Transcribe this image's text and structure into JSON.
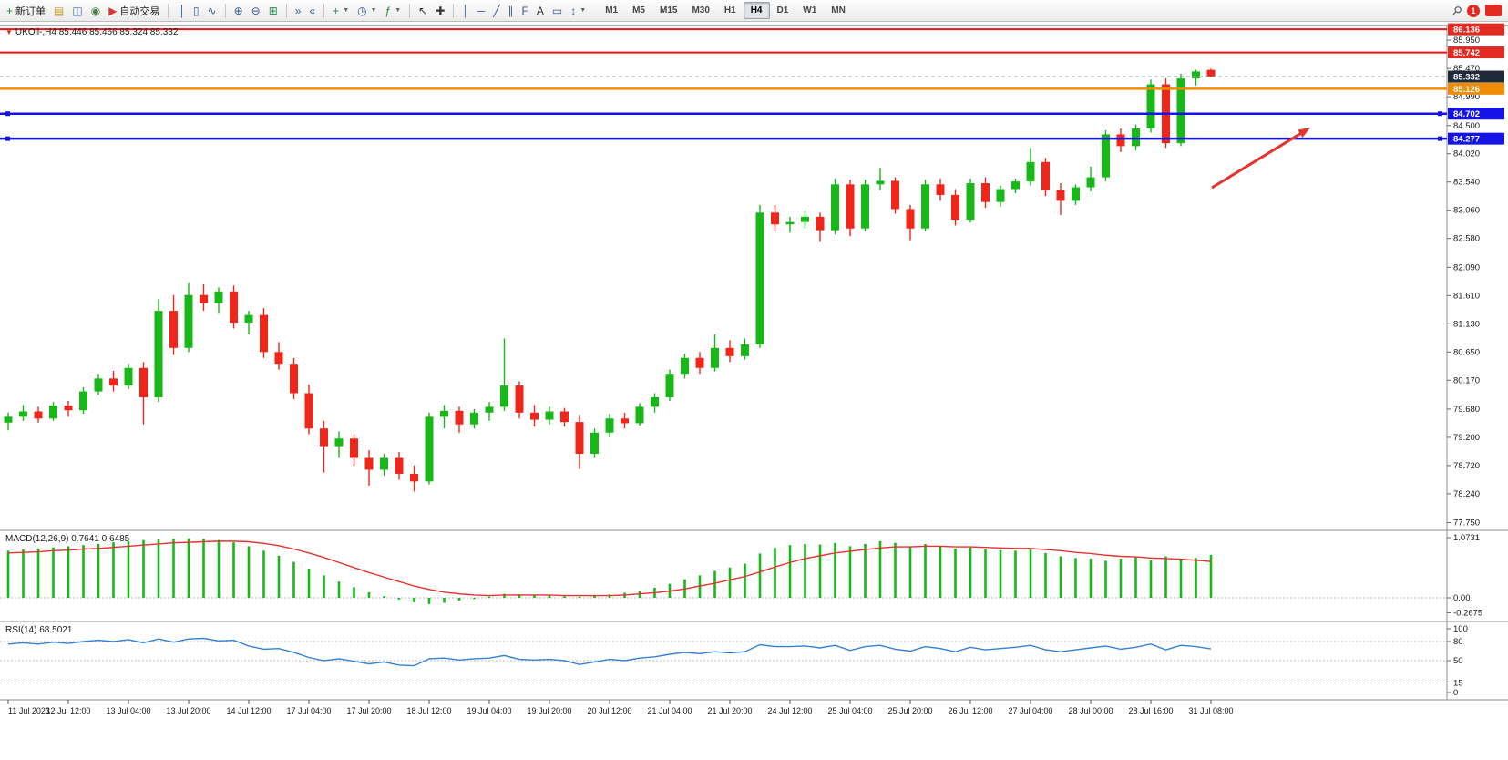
{
  "toolbar": {
    "items": [
      {
        "type": "button",
        "name": "new-order-button",
        "glyph": "+",
        "glyph_color": "#1f8a3b",
        "label": "新订单",
        "dropdown": false
      },
      {
        "type": "button",
        "name": "market-watch-button",
        "glyph": "▤",
        "glyph_color": "#c49a2a"
      },
      {
        "type": "button",
        "name": "data-window-button",
        "glyph": "◫",
        "glyph_color": "#3c6fb0"
      },
      {
        "type": "button",
        "name": "navigator-button",
        "glyph": "◉",
        "glyph_color": "#4a7f46"
      },
      {
        "type": "button",
        "name": "algo-trading-button",
        "glyph": "▶",
        "glyph_color": "#d23b2e",
        "label": "自动交易"
      },
      {
        "type": "separator"
      },
      {
        "type": "button",
        "name": "bars-chart-type-button",
        "glyph": "║",
        "glyph_color": "#3a5a8c"
      },
      {
        "type": "button",
        "name": "candlestick-chart-type-button",
        "glyph": "▯",
        "glyph_color": "#3a5a8c"
      },
      {
        "type": "button",
        "name": "line-chart-type-button",
        "glyph": "∿",
        "glyph_color": "#3a5a8c"
      },
      {
        "type": "separator"
      },
      {
        "type": "button",
        "name": "zoom-in-button",
        "glyph": "⊕",
        "glyph_color": "#3a5a8c"
      },
      {
        "type": "button",
        "name": "zoom-out-button",
        "glyph": "⊖",
        "glyph_color": "#3a5a8c"
      },
      {
        "type": "button",
        "name": "tile-windows-button",
        "glyph": "⊞",
        "glyph_color": "#2e8b57"
      },
      {
        "type": "separator"
      },
      {
        "type": "button",
        "name": "auto-scroll-button",
        "glyph": "»",
        "glyph_color": "#3a5a8c"
      },
      {
        "type": "button",
        "name": "chart-shift-button",
        "glyph": "«",
        "glyph_color": "#3a5a8c"
      },
      {
        "type": "separator"
      },
      {
        "type": "button",
        "name": "new-chart-button",
        "glyph": "+",
        "glyph_color": "#2e8b57",
        "dropdown": true
      },
      {
        "type": "button",
        "name": "periods-button",
        "glyph": "◷",
        "glyph_color": "#3a5a8c",
        "dropdown": true
      },
      {
        "type": "button",
        "name": "indicators-button",
        "glyph": "ƒ",
        "glyph_color": "#2e7d32",
        "dropdown": true
      },
      {
        "type": "separator"
      },
      {
        "type": "button",
        "name": "cursor-button",
        "glyph": "↖",
        "glyph_color": "#333333"
      },
      {
        "type": "button",
        "name": "crosshair-button",
        "glyph": "✚",
        "glyph_color": "#333333"
      },
      {
        "type": "separator"
      },
      {
        "type": "button",
        "name": "vertical-line-button",
        "glyph": "│",
        "glyph_color": "#3a5a8c"
      },
      {
        "type": "button",
        "name": "horizontal-line-button",
        "glyph": "─",
        "glyph_color": "#3a5a8c"
      },
      {
        "type": "button",
        "name": "trendline-button",
        "glyph": "╱",
        "glyph_color": "#3a5a8c"
      },
      {
        "type": "button",
        "name": "equidistant-channel-button",
        "glyph": "∥",
        "glyph_color": "#3a5a8c"
      },
      {
        "type": "button",
        "name": "fibonacci-button",
        "glyph": "F",
        "glyph_color": "#3a5a8c"
      },
      {
        "type": "button",
        "name": "text-tool-button",
        "glyph": "A",
        "glyph_color": "#333333"
      },
      {
        "type": "button",
        "name": "shapes-tool-button",
        "glyph": "▭",
        "glyph_color": "#3a5a8c"
      },
      {
        "type": "button",
        "name": "arrows-tool-button",
        "glyph": "↕",
        "glyph_color": "#3a5a8c",
        "dropdown": true
      }
    ],
    "timeframes": [
      "M1",
      "M5",
      "M15",
      "M30",
      "H1",
      "H4",
      "D1",
      "W1",
      "MN"
    ],
    "active_timeframe": "H4",
    "notification_count": "1"
  },
  "panels": {
    "symbol_label": "UKOil-,H4  85.446 85.466 85.324 85.332",
    "macd_label": "MACD(12,26,9) 0.7641 0.6485",
    "rsi_label": "RSI(14) 68.5021"
  },
  "chart_data": {
    "type": "candlestick",
    "symbol": "UKOil-",
    "timeframe": "H4",
    "current_bar": {
      "open": 85.446,
      "high": 85.466,
      "low": 85.324,
      "close": 85.332
    },
    "colors": {
      "up": "#17b817",
      "down": "#f0261b",
      "macd_hist": "#17b817",
      "macd_signal": "#e3342f",
      "rsi_line": "#3481d6",
      "axis_text": "#1a1a1a",
      "border": "#8c8c8c",
      "arrow": "#e3342f"
    },
    "ohlc": [
      [
        79.45,
        79.62,
        79.32,
        79.55
      ],
      [
        79.55,
        79.75,
        79.48,
        79.64
      ],
      [
        79.64,
        79.72,
        79.45,
        79.52
      ],
      [
        79.52,
        79.8,
        79.48,
        79.74
      ],
      [
        79.74,
        79.82,
        79.55,
        79.66
      ],
      [
        79.66,
        80.05,
        79.6,
        79.98
      ],
      [
        79.98,
        80.28,
        79.92,
        80.2
      ],
      [
        80.2,
        80.33,
        79.98,
        80.08
      ],
      [
        80.08,
        80.45,
        80.02,
        80.38
      ],
      [
        80.38,
        80.48,
        79.42,
        79.88
      ],
      [
        79.88,
        81.55,
        79.8,
        81.35
      ],
      [
        81.35,
        81.62,
        80.6,
        80.72
      ],
      [
        80.72,
        81.82,
        80.65,
        81.62
      ],
      [
        81.62,
        81.8,
        81.35,
        81.48
      ],
      [
        81.48,
        81.75,
        81.3,
        81.68
      ],
      [
        81.68,
        81.78,
        81.05,
        81.15
      ],
      [
        81.15,
        81.35,
        80.95,
        81.28
      ],
      [
        81.28,
        81.4,
        80.55,
        80.65
      ],
      [
        80.65,
        80.82,
        80.35,
        80.45
      ],
      [
        80.45,
        80.55,
        79.85,
        79.95
      ],
      [
        79.95,
        80.1,
        79.25,
        79.35
      ],
      [
        79.35,
        79.48,
        78.6,
        79.05
      ],
      [
        79.05,
        79.3,
        78.85,
        79.18
      ],
      [
        79.18,
        79.25,
        78.72,
        78.85
      ],
      [
        78.85,
        78.98,
        78.38,
        78.65
      ],
      [
        78.65,
        78.92,
        78.55,
        78.85
      ],
      [
        78.85,
        78.95,
        78.48,
        78.58
      ],
      [
        78.58,
        78.72,
        78.28,
        78.45
      ],
      [
        78.45,
        79.62,
        78.4,
        79.55
      ],
      [
        79.55,
        79.75,
        79.35,
        79.65
      ],
      [
        79.65,
        79.72,
        79.28,
        79.42
      ],
      [
        79.42,
        79.68,
        79.35,
        79.62
      ],
      [
        79.62,
        79.8,
        79.48,
        79.72
      ],
      [
        79.72,
        80.88,
        79.65,
        80.08
      ],
      [
        80.08,
        80.15,
        79.52,
        79.62
      ],
      [
        79.62,
        79.75,
        79.38,
        79.5
      ],
      [
        79.5,
        79.72,
        79.42,
        79.64
      ],
      [
        79.64,
        79.7,
        79.38,
        79.46
      ],
      [
        79.46,
        79.58,
        78.66,
        78.92
      ],
      [
        78.92,
        79.35,
        78.85,
        79.28
      ],
      [
        79.28,
        79.6,
        79.2,
        79.52
      ],
      [
        79.52,
        79.62,
        79.35,
        79.44
      ],
      [
        79.44,
        79.78,
        79.4,
        79.72
      ],
      [
        79.72,
        79.95,
        79.62,
        79.88
      ],
      [
        79.88,
        80.35,
        79.82,
        80.28
      ],
      [
        80.28,
        80.62,
        80.2,
        80.55
      ],
      [
        80.55,
        80.65,
        80.28,
        80.38
      ],
      [
        80.38,
        80.95,
        80.32,
        80.72
      ],
      [
        80.72,
        80.85,
        80.48,
        80.58
      ],
      [
        80.58,
        80.88,
        80.52,
        80.78
      ],
      [
        80.78,
        83.15,
        80.72,
        83.02
      ],
      [
        83.02,
        83.15,
        82.7,
        82.82
      ],
      [
        82.82,
        82.95,
        82.68,
        82.86
      ],
      [
        82.86,
        83.05,
        82.75,
        82.95
      ],
      [
        82.95,
        83.02,
        82.52,
        82.72
      ],
      [
        82.72,
        83.6,
        82.65,
        83.5
      ],
      [
        83.5,
        83.58,
        82.62,
        82.75
      ],
      [
        82.75,
        83.58,
        82.7,
        83.5
      ],
      [
        83.5,
        83.78,
        83.4,
        83.56
      ],
      [
        83.56,
        83.62,
        83.0,
        83.08
      ],
      [
        83.08,
        83.15,
        82.55,
        82.75
      ],
      [
        82.75,
        83.58,
        82.7,
        83.5
      ],
      [
        83.5,
        83.6,
        83.22,
        83.32
      ],
      [
        83.32,
        83.42,
        82.8,
        82.9
      ],
      [
        82.9,
        83.6,
        82.85,
        83.52
      ],
      [
        83.52,
        83.62,
        83.1,
        83.2
      ],
      [
        83.2,
        83.48,
        83.12,
        83.42
      ],
      [
        83.42,
        83.6,
        83.35,
        83.55
      ],
      [
        83.55,
        84.12,
        83.48,
        83.88
      ],
      [
        83.88,
        83.95,
        83.3,
        83.4
      ],
      [
        83.4,
        83.52,
        82.98,
        83.22
      ],
      [
        83.22,
        83.5,
        83.15,
        83.45
      ],
      [
        83.45,
        83.8,
        83.38,
        83.62
      ],
      [
        83.62,
        84.42,
        83.55,
        84.35
      ],
      [
        84.35,
        84.45,
        84.05,
        84.15
      ],
      [
        84.15,
        84.52,
        84.08,
        84.45
      ],
      [
        84.45,
        85.28,
        84.38,
        85.2
      ],
      [
        85.2,
        85.3,
        84.12,
        84.2
      ],
      [
        84.2,
        85.38,
        84.15,
        85.3
      ],
      [
        85.3,
        85.45,
        85.18,
        85.42
      ],
      [
        85.446,
        85.466,
        85.324,
        85.332
      ]
    ],
    "x_labels": [
      "11 Jul 2023",
      "12 Jul 12:00",
      "13 Jul 04:00",
      "13 Jul 20:00",
      "14 Jul 12:00",
      "17 Jul 04:00",
      "17 Jul 20:00",
      "18 Jul 12:00",
      "19 Jul 04:00",
      "19 Jul 20:00",
      "20 Jul 12:00",
      "21 Jul 04:00",
      "21 Jul 20:00",
      "24 Jul 12:00",
      "25 Jul 04:00",
      "25 Jul 20:00",
      "26 Jul 12:00",
      "27 Jul 04:00",
      "28 Jul 00:00",
      "28 Jul 16:00",
      "31 Jul 08:00"
    ],
    "x_label_every": 4,
    "y_axis_ticks": [
      "85.950",
      "85.470",
      "84.990",
      "84.500",
      "84.020",
      "83.540",
      "83.060",
      "82.580",
      "82.090",
      "81.610",
      "81.130",
      "80.650",
      "80.170",
      "79.680",
      "79.200",
      "78.720",
      "78.240",
      "77.750"
    ],
    "price_lines": [
      {
        "name": "resistance-line-upper",
        "price": 86.136,
        "color": "#f01414",
        "width": 2,
        "style": "solid",
        "badge": "86.136",
        "badge_color": "#e02a22"
      },
      {
        "name": "resistance-line-lower",
        "price": 85.742,
        "color": "#f01414",
        "width": 2,
        "style": "solid",
        "badge": "85.742",
        "badge_color": "#e02a22"
      },
      {
        "name": "bid-price-line",
        "price": 85.332,
        "color": "#9aa4ae",
        "width": 1,
        "style": "dash",
        "badge": "85.332",
        "badge_color": "#1e2a38"
      },
      {
        "name": "orange-support-line",
        "price": 85.126,
        "color": "#f08c00",
        "width": 2.5,
        "style": "solid",
        "badge": "85.126",
        "badge_color": "#f08c00"
      },
      {
        "name": "blue-support-line-upper",
        "price": 84.702,
        "color": "#1414e6",
        "width": 2.5,
        "style": "solid",
        "handles": true,
        "badge": "84.702",
        "badge_color": "#1414e6"
      },
      {
        "name": "blue-support-line-lower",
        "price": 84.277,
        "color": "#1414e6",
        "width": 2.5,
        "style": "solid",
        "handles": true,
        "badge": "84.277",
        "badge_color": "#1414e6"
      }
    ],
    "macd": {
      "params": "12,26,9",
      "hist": [
        0.84,
        0.86,
        0.88,
        0.9,
        0.92,
        0.94,
        0.96,
        0.99,
        1.01,
        1.03,
        1.04,
        1.05,
        1.06,
        1.05,
        1.03,
        0.99,
        0.92,
        0.84,
        0.75,
        0.64,
        0.52,
        0.4,
        0.29,
        0.19,
        0.1,
        0.03,
        -0.03,
        -0.08,
        -0.11,
        -0.09,
        -0.05,
        -0.02,
        0.02,
        0.07,
        0.06,
        0.04,
        0.04,
        0.03,
        0.02,
        0.04,
        0.06,
        0.09,
        0.13,
        0.18,
        0.25,
        0.33,
        0.4,
        0.48,
        0.54,
        0.61,
        0.79,
        0.89,
        0.94,
        0.96,
        0.95,
        0.98,
        0.92,
        0.96,
        1.01,
        0.98,
        0.92,
        0.96,
        0.93,
        0.88,
        0.9,
        0.87,
        0.85,
        0.84,
        0.86,
        0.8,
        0.74,
        0.71,
        0.7,
        0.66,
        0.7,
        0.72,
        0.67,
        0.74,
        0.68,
        0.71,
        0.7641
      ],
      "signal": [
        0.8,
        0.81,
        0.82,
        0.84,
        0.85,
        0.87,
        0.88,
        0.9,
        0.92,
        0.94,
        0.96,
        0.98,
        0.99,
        1.0,
        1.01,
        1.01,
        1.0,
        0.97,
        0.93,
        0.87,
        0.8,
        0.72,
        0.63,
        0.54,
        0.45,
        0.37,
        0.29,
        0.21,
        0.15,
        0.1,
        0.07,
        0.05,
        0.04,
        0.05,
        0.05,
        0.05,
        0.05,
        0.04,
        0.04,
        0.04,
        0.04,
        0.05,
        0.07,
        0.09,
        0.12,
        0.16,
        0.21,
        0.26,
        0.32,
        0.38,
        0.46,
        0.55,
        0.63,
        0.7,
        0.75,
        0.8,
        0.83,
        0.86,
        0.89,
        0.91,
        0.91,
        0.92,
        0.92,
        0.91,
        0.91,
        0.9,
        0.89,
        0.88,
        0.88,
        0.86,
        0.84,
        0.81,
        0.79,
        0.76,
        0.74,
        0.73,
        0.71,
        0.7,
        0.69,
        0.67,
        0.6485
      ],
      "axis_ticks": [
        {
          "text": "1.0731",
          "value": 1.0731
        },
        {
          "text": "0.00",
          "value": 0
        },
        {
          "text": "-0.2675",
          "value": -0.2675
        }
      ]
    },
    "rsi": {
      "period": "14",
      "values": [
        76,
        78,
        76,
        79,
        77,
        80,
        82,
        80,
        83,
        78,
        84,
        79,
        84,
        85,
        81,
        82,
        73,
        68,
        69,
        63,
        55,
        50,
        53,
        49,
        45,
        48,
        43,
        42,
        53,
        54,
        51,
        53,
        54,
        58,
        52,
        51,
        52,
        50,
        44,
        48,
        52,
        50,
        54,
        56,
        60,
        63,
        61,
        64,
        62,
        64,
        75,
        72,
        72,
        73,
        70,
        74,
        66,
        72,
        74,
        68,
        65,
        72,
        69,
        64,
        71,
        67,
        69,
        71,
        74,
        67,
        64,
        67,
        70,
        73,
        68,
        71,
        76,
        67,
        74,
        72,
        68.5
      ],
      "levels": [
        80,
        50,
        15
      ],
      "axis_ticks": [
        {
          "text": "100",
          "value": 100
        },
        {
          "text": "80",
          "value": 80
        },
        {
          "text": "50",
          "value": 50
        },
        {
          "text": "15",
          "value": 15
        },
        {
          "text": "0",
          "value": 0
        }
      ]
    },
    "arrow_annotation": {
      "from_img": [
        1330,
        206
      ],
      "to_img": [
        1438,
        140
      ]
    }
  }
}
